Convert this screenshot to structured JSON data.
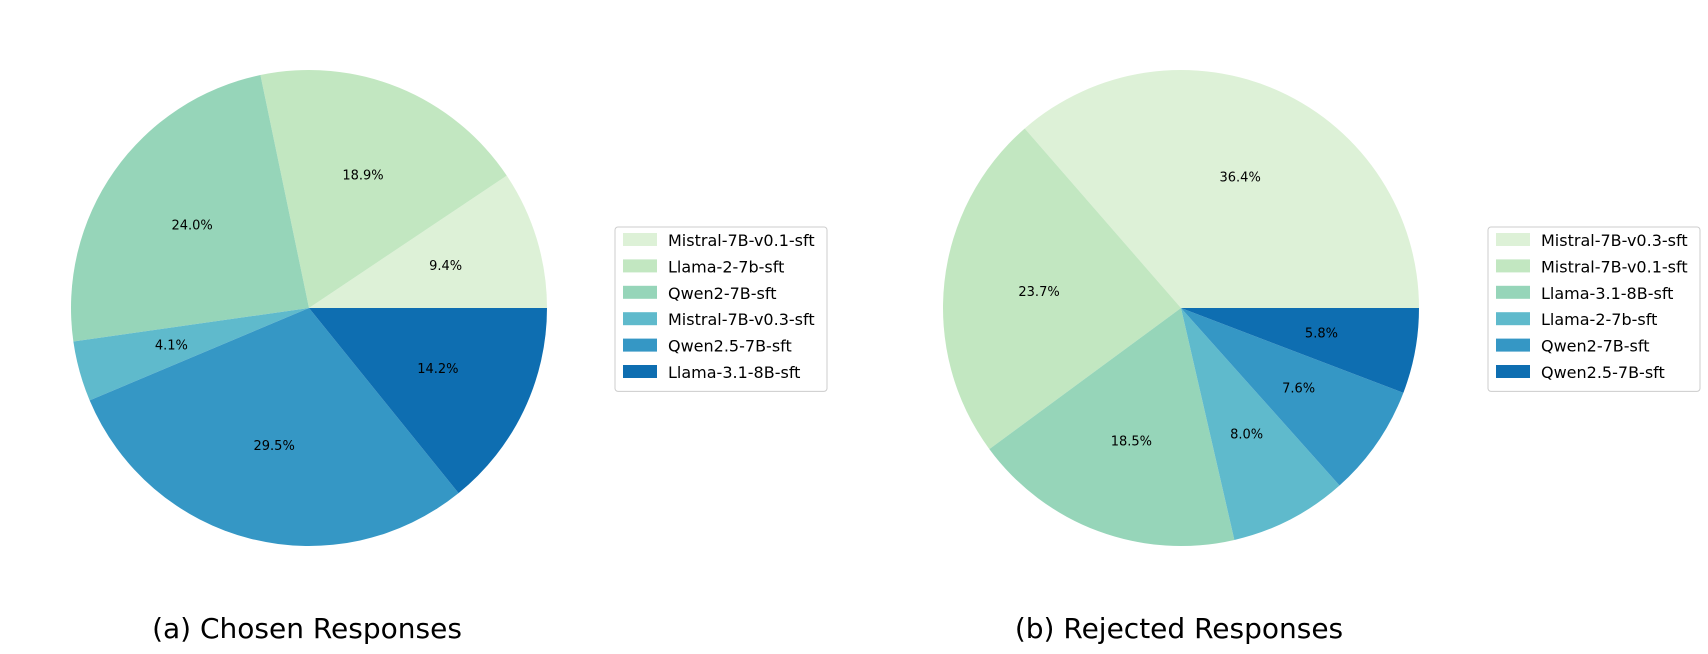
{
  "chart_data": [
    {
      "type": "pie",
      "caption": "(a) Chosen Responses",
      "start_angle_deg": 0,
      "direction": "counterclockwise",
      "legend_position": "right",
      "slices": [
        {
          "label": "Mistral-7B-v0.1-sft",
          "value": 9.4,
          "display": "9.4%",
          "color": "#ddf1d7"
        },
        {
          "label": "Llama-2-7b-sft",
          "value": 18.9,
          "display": "18.9%",
          "color": "#c2e7c1"
        },
        {
          "label": "Qwen2-7B-sft",
          "value": 24.0,
          "display": "24.0%",
          "color": "#96d5b9"
        },
        {
          "label": "Mistral-7B-v0.3-sft",
          "value": 4.1,
          "display": "4.1%",
          "color": "#5fbacc"
        },
        {
          "label": "Qwen2.5-7B-sft",
          "value": 29.5,
          "display": "29.5%",
          "color": "#3597c5"
        },
        {
          "label": "Llama-3.1-8B-sft",
          "value": 14.2,
          "display": "14.2%",
          "color": "#0e6eb1"
        }
      ]
    },
    {
      "type": "pie",
      "caption": "(b) Rejected Responses",
      "start_angle_deg": 0,
      "direction": "counterclockwise",
      "legend_position": "right",
      "slices": [
        {
          "label": "Mistral-7B-v0.3-sft",
          "value": 36.4,
          "display": "36.4%",
          "color": "#ddf1d7"
        },
        {
          "label": "Mistral-7B-v0.1-sft",
          "value": 23.7,
          "display": "23.7%",
          "color": "#c2e7c1"
        },
        {
          "label": "Llama-3.1-8B-sft",
          "value": 18.5,
          "display": "18.5%",
          "color": "#96d5b9"
        },
        {
          "label": "Llama-2-7b-sft",
          "value": 8.0,
          "display": "8.0%",
          "color": "#5fbacc"
        },
        {
          "label": "Qwen2-7B-sft",
          "value": 7.6,
          "display": "7.6%",
          "color": "#3597c5"
        },
        {
          "label": "Qwen2.5-7B-sft",
          "value": 5.8,
          "display": "5.8%",
          "color": "#0e6eb1"
        }
      ]
    }
  ]
}
